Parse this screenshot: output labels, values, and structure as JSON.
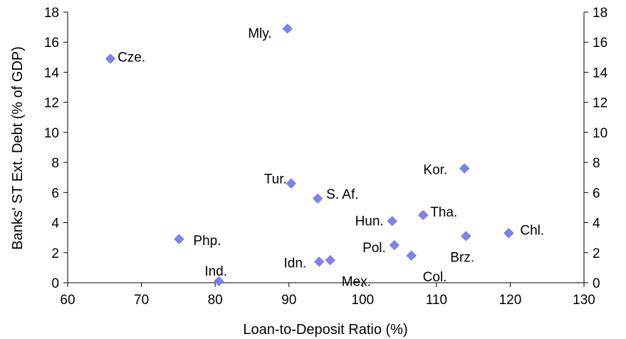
{
  "chart_data": {
    "type": "scatter",
    "title": "",
    "xlabel": "Loan-to-Deposit Ratio (%)",
    "ylabel": "Banks' ST Ext. Debt (% of GDP)",
    "xlim": [
      60,
      130
    ],
    "ylim": [
      0,
      18
    ],
    "xticks": [
      60,
      70,
      80,
      90,
      100,
      110,
      120,
      130
    ],
    "yticks": [
      0,
      2,
      4,
      6,
      8,
      10,
      12,
      14,
      16,
      18
    ],
    "secondary_y_axis": true,
    "grid": false,
    "marker": "diamond",
    "marker_color": "#7f7ff0",
    "points": [
      {
        "label": "Mly.",
        "x": 89.8,
        "y": 16.9
      },
      {
        "label": "Cze.",
        "x": 65.8,
        "y": 14.9
      },
      {
        "label": "Kor.",
        "x": 113.8,
        "y": 7.6
      },
      {
        "label": "Tur.",
        "x": 90.3,
        "y": 6.6
      },
      {
        "label": "S. Af.",
        "x": 93.9,
        "y": 5.6
      },
      {
        "label": "Tha.",
        "x": 108.2,
        "y": 4.5
      },
      {
        "label": "Hun.",
        "x": 104.0,
        "y": 4.1
      },
      {
        "label": "Chl.",
        "x": 119.8,
        "y": 3.3
      },
      {
        "label": "Brz.",
        "x": 114.0,
        "y": 3.1
      },
      {
        "label": "Php.",
        "x": 75.1,
        "y": 2.9
      },
      {
        "label": "Pol.",
        "x": 104.3,
        "y": 2.5
      },
      {
        "label": "Col.",
        "x": 106.6,
        "y": 1.8
      },
      {
        "label": "Mex.",
        "x": 95.6,
        "y": 1.5
      },
      {
        "label": "Idn.",
        "x": 94.1,
        "y": 1.4
      },
      {
        "label": "Ind.",
        "x": 80.5,
        "y": 0.1
      }
    ]
  }
}
